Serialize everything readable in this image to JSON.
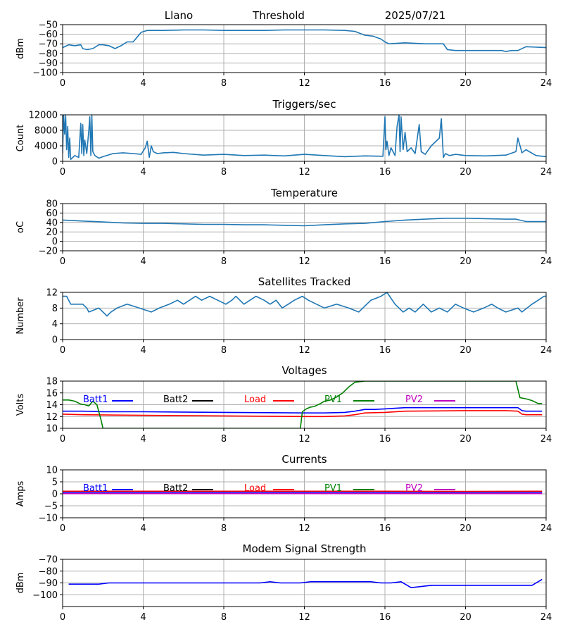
{
  "header": {
    "station": "Llano",
    "subtitle": "Threshold",
    "date": "2025/07/21"
  },
  "colors": {
    "series_default": "#1f77b4",
    "batt1": "#0000ff",
    "batt2": "#000000",
    "load": "#ff0000",
    "pv1": "#008000",
    "pv2": "#bf00bf",
    "grid": "#b0b0b0"
  },
  "chart_data": [
    {
      "type": "line",
      "title": "",
      "ylabel": "dBm",
      "ylim": [
        -100,
        -50
      ],
      "yticks": [
        -50,
        -60,
        -70,
        -80,
        -90,
        -100
      ],
      "xlim": [
        0,
        24
      ],
      "xticks": [
        0,
        4,
        8,
        12,
        16,
        20,
        24
      ],
      "grid": true,
      "series": [
        {
          "color": "#1f77b4",
          "x": [
            0,
            0.3,
            0.6,
            0.9,
            1.0,
            1.2,
            1.5,
            1.8,
            2.0,
            2.3,
            2.6,
            2.9,
            3.2,
            3.5,
            3.7,
            3.9,
            4.2,
            5,
            6,
            7,
            8,
            9,
            10,
            11,
            12,
            13,
            14,
            14.5,
            15,
            15.4,
            15.8,
            16.0,
            16.2,
            17,
            18,
            18.9,
            19.1,
            19.5,
            20,
            21,
            21.8,
            22.0,
            22.3,
            22.6,
            23,
            24
          ],
          "y": [
            -74,
            -71,
            -72,
            -71,
            -75,
            -76,
            -75,
            -71,
            -71,
            -72,
            -75,
            -72,
            -68,
            -68,
            -63,
            -58,
            -56,
            -56,
            -55.5,
            -55.5,
            -56,
            -56,
            -56,
            -55.5,
            -55.5,
            -55.5,
            -56,
            -57,
            -61,
            -62,
            -65,
            -68,
            -70,
            -69,
            -70,
            -70,
            -76,
            -77,
            -77,
            -77,
            -77,
            -78,
            -77,
            -77,
            -73,
            -74
          ]
        }
      ]
    },
    {
      "type": "line",
      "title": "Triggers/sec",
      "ylabel": "Count",
      "ylim": [
        0,
        12000
      ],
      "yticks": [
        0,
        4000,
        8000,
        12000
      ],
      "xlim": [
        0,
        24
      ],
      "xticks": [
        0,
        4,
        8,
        12,
        16,
        20,
        24
      ],
      "grid": true,
      "series": [
        {
          "color": "#1f77b4",
          "x": [
            0,
            0.05,
            0.1,
            0.15,
            0.2,
            0.25,
            0.3,
            0.35,
            0.4,
            0.6,
            0.8,
            0.9,
            0.95,
            1.0,
            1.05,
            1.1,
            1.2,
            1.3,
            1.35,
            1.4,
            1.45,
            1.5,
            1.6,
            1.8,
            2.0,
            2.5,
            3.0,
            3.5,
            3.9,
            4.1,
            4.2,
            4.3,
            4.4,
            4.5,
            4.7,
            5.0,
            5.5,
            6.0,
            7.0,
            8.0,
            9.0,
            10.0,
            11.0,
            12.0,
            13.0,
            14.0,
            15.0,
            15.9,
            16.0,
            16.05,
            16.1,
            16.2,
            16.3,
            16.5,
            16.6,
            16.7,
            16.75,
            16.8,
            16.9,
            17.0,
            17.1,
            17.3,
            17.5,
            17.7,
            17.8,
            18.0,
            18.3,
            18.7,
            18.8,
            18.9,
            19.0,
            19.2,
            19.5,
            20.0,
            21.0,
            22.0,
            22.5,
            22.6,
            22.8,
            23.0,
            23.5,
            24.0
          ],
          "y": [
            2000,
            12000,
            7000,
            11800,
            3000,
            9000,
            1000,
            6000,
            500,
            1500,
            1000,
            9800,
            2000,
            9500,
            1500,
            5500,
            2000,
            8000,
            11500,
            1500,
            12000,
            2500,
            1500,
            800,
            1200,
            2000,
            2200,
            2000,
            1800,
            3500,
            5200,
            1000,
            4000,
            2500,
            2000,
            2200,
            2300,
            2000,
            1600,
            1800,
            1500,
            1600,
            1400,
            1800,
            1500,
            1200,
            1400,
            1300,
            11500,
            3000,
            5200,
            1500,
            3500,
            1500,
            9000,
            12000,
            2500,
            11500,
            3000,
            7500,
            2500,
            3500,
            2000,
            9500,
            2500,
            1800,
            4000,
            6000,
            11000,
            1000,
            2000,
            1500,
            1800,
            1500,
            1400,
            1600,
            2500,
            6000,
            2200,
            3000,
            1500,
            1200
          ]
        }
      ]
    },
    {
      "type": "line",
      "title": "Temperature",
      "ylabel": "oC",
      "ylim": [
        -20,
        80
      ],
      "yticks": [
        80,
        60,
        40,
        20,
        0,
        -20
      ],
      "xlim": [
        0,
        24
      ],
      "xticks": [
        0,
        4,
        8,
        12,
        16,
        20,
        24
      ],
      "grid": true,
      "series": [
        {
          "color": "#1f77b4",
          "x": [
            0,
            0.5,
            1,
            2,
            3,
            4,
            5,
            6,
            7,
            8,
            9,
            10,
            11,
            12,
            13,
            14,
            15,
            16,
            17,
            18,
            19,
            20,
            21,
            22,
            22.5,
            23,
            24
          ],
          "y": [
            45,
            44,
            43,
            41,
            39,
            38,
            38,
            37,
            36,
            36,
            35,
            35,
            34,
            33,
            35,
            37,
            38,
            42,
            45,
            47,
            49,
            49,
            48,
            47,
            47,
            42,
            42
          ]
        }
      ]
    },
    {
      "type": "line",
      "title": "Satellites Tracked",
      "ylabel": "Number",
      "ylim": [
        0,
        12
      ],
      "yticks": [
        0,
        4,
        8,
        12
      ],
      "xlim": [
        0,
        24
      ],
      "xticks": [
        0,
        4,
        8,
        12,
        16,
        20,
        24
      ],
      "grid": true,
      "series": [
        {
          "color": "#1f77b4",
          "x": [
            0,
            0.2,
            0.4,
            1.0,
            1.2,
            1.2,
            1.3,
            1.3,
            1.8,
            1.8,
            2.0,
            2.0,
            2.2,
            2.2,
            2.4,
            2.4,
            2.7,
            2.7,
            3.2,
            3.2,
            3.8,
            3.8,
            4.4,
            4.4,
            4.8,
            4.8,
            5.3,
            5.3,
            5.7,
            5.7,
            6.0,
            6.0,
            6.3,
            6.3,
            6.6,
            6.6,
            6.9,
            6.9,
            7.3,
            7.3,
            7.7,
            7.7,
            8.1,
            8.1,
            8.4,
            8.4,
            8.6,
            8.6,
            9.0,
            9.0,
            9.3,
            9.3,
            9.6,
            9.6,
            10.0,
            10.0,
            10.3,
            10.3,
            10.6,
            10.6,
            10.9,
            10.9,
            11.2,
            11.2,
            11.5,
            11.5,
            11.9,
            11.9,
            12.2,
            12.2,
            12.6,
            12.6,
            13.0,
            13.0,
            13.6,
            13.6,
            14.2,
            14.2,
            14.7,
            14.7,
            15.3,
            15.3,
            15.8,
            15.8,
            16.1,
            16.1,
            16.5,
            16.5,
            16.9,
            16.9,
            17.2,
            17.2,
            17.5,
            17.5,
            17.9,
            17.9,
            18.3,
            18.3,
            18.7,
            18.7,
            19.1,
            19.1,
            19.5,
            19.5,
            19.9,
            19.9,
            20.4,
            20.4,
            20.9,
            20.9,
            21.3,
            21.3,
            21.6,
            21.6,
            22.0,
            22.0,
            22.6,
            22.6,
            22.8,
            22.8,
            23.3,
            23.3,
            23.6,
            23.6,
            23.9,
            24.0
          ],
          "y": [
            11,
            11,
            9,
            9,
            8,
            8,
            7,
            7,
            8,
            8,
            7,
            7,
            6,
            6,
            7,
            7,
            8,
            8,
            9,
            9,
            8,
            8,
            7,
            7,
            8,
            8,
            9,
            9,
            10,
            10,
            9,
            9,
            10,
            10,
            11,
            11,
            10,
            10,
            11,
            11,
            10,
            10,
            9,
            9,
            10,
            10,
            11,
            11,
            9,
            9,
            10,
            10,
            11,
            11,
            10,
            10,
            9,
            9,
            10,
            10,
            8,
            8,
            9,
            9,
            10,
            10,
            11,
            11,
            10,
            10,
            9,
            9,
            8,
            8,
            9,
            9,
            8,
            8,
            7,
            7,
            10,
            10,
            11,
            11,
            12,
            12,
            9,
            9,
            7,
            7,
            8,
            8,
            7,
            7,
            9,
            9,
            7,
            7,
            8,
            8,
            7,
            7,
            9,
            9,
            8,
            8,
            7,
            7,
            8,
            8,
            9,
            9,
            8,
            8,
            7,
            7,
            8,
            8,
            7,
            7,
            9,
            9,
            10,
            10,
            11,
            11
          ]
        }
      ]
    },
    {
      "type": "line",
      "title": "Voltages",
      "ylabel": "Volts",
      "ylim": [
        10,
        18
      ],
      "yticks": [
        10,
        12,
        14,
        16,
        18
      ],
      "xlim": [
        0,
        24
      ],
      "xticks": [
        0,
        4,
        8,
        12,
        16,
        20,
        24
      ],
      "grid": true,
      "legend": "top",
      "series": [
        {
          "name": "Batt1",
          "color": "#0000ff",
          "x": [
            0,
            1,
            2,
            4,
            8,
            12,
            13,
            14,
            14.5,
            15,
            15.5,
            16,
            17,
            20,
            22.6,
            22.8,
            23,
            23.8
          ],
          "y": [
            12.9,
            12.9,
            12.8,
            12.8,
            12.7,
            12.6,
            12.6,
            12.7,
            12.9,
            13.2,
            13.2,
            13.3,
            13.5,
            13.5,
            13.5,
            13.0,
            12.9,
            12.9
          ]
        },
        {
          "name": "Batt2",
          "color": "#000000",
          "x": [],
          "y": []
        },
        {
          "name": "Load",
          "color": "#ff0000",
          "x": [
            0,
            1,
            4,
            8,
            12,
            13,
            14,
            14.5,
            15,
            16,
            17,
            20,
            22,
            22.6,
            22.8,
            23,
            23.8
          ],
          "y": [
            12.4,
            12.3,
            12.2,
            12.1,
            12.0,
            12.0,
            12.1,
            12.3,
            12.6,
            12.7,
            12.9,
            13.0,
            13.0,
            12.9,
            12.4,
            12.3,
            12.3
          ]
        },
        {
          "name": "PV1",
          "color": "#008000",
          "x": [
            0,
            0.3,
            0.6,
            0.9,
            1.1,
            1.3,
            1.5,
            1.7,
            1.9,
            2.0,
            11.8,
            11.9,
            12.1,
            12.3,
            12.5,
            12.8,
            13.0,
            13.3,
            13.6,
            13.9,
            14.2,
            14.5,
            15.0,
            22.5,
            22.7,
            23.0,
            23.3,
            23.6,
            23.8
          ],
          "y": [
            14.8,
            14.8,
            14.6,
            14.1,
            14.0,
            13.8,
            14.6,
            14.0,
            11.5,
            10.0,
            10.0,
            12.8,
            13.3,
            13.6,
            13.7,
            14.2,
            14.6,
            14.8,
            15.3,
            16.0,
            17.0,
            17.8,
            18.0,
            18.0,
            15.2,
            15.0,
            14.7,
            14.2,
            14.2
          ]
        },
        {
          "name": "PV2",
          "color": "#bf00bf",
          "x": [],
          "y": []
        }
      ]
    },
    {
      "type": "line",
      "title": "Currents",
      "ylabel": "Amps",
      "ylim": [
        -10,
        10
      ],
      "yticks": [
        10,
        5,
        0,
        -5,
        -10
      ],
      "xlim": [
        0,
        24
      ],
      "xticks": [
        0,
        4,
        8,
        12,
        16,
        20,
        24
      ],
      "grid": true,
      "legend": "top",
      "series": [
        {
          "name": "Batt1",
          "color": "#0000ff",
          "x": [
            0,
            23.8
          ],
          "y": [
            0.6,
            0.6
          ]
        },
        {
          "name": "Batt2",
          "color": "#000000",
          "x": [],
          "y": []
        },
        {
          "name": "Load",
          "color": "#ff0000",
          "x": [
            0,
            4,
            8,
            12,
            16,
            20,
            23.8
          ],
          "y": [
            1.1,
            1.1,
            1.1,
            1.1,
            1.1,
            1.0,
            1.1
          ]
        },
        {
          "name": "PV1",
          "color": "#008000",
          "x": [],
          "y": []
        },
        {
          "name": "PV2",
          "color": "#bf00bf",
          "x": [
            0,
            23.8
          ],
          "y": [
            0.1,
            0.1
          ]
        }
      ]
    },
    {
      "type": "line",
      "title": "Modem Signal Strength",
      "ylabel": "dBm",
      "ylim": [
        -110,
        -70
      ],
      "yticks": [
        -70,
        -80,
        -90,
        -100
      ],
      "xlim": [
        0,
        24
      ],
      "xticks": [
        0,
        4,
        8,
        12,
        16,
        20,
        24
      ],
      "grid": true,
      "series": [
        {
          "color": "#0000ff",
          "x": [
            0.3,
            1.8,
            2.3,
            9.8,
            10.3,
            10.8,
            11.8,
            12.3,
            15.3,
            15.8,
            16.3,
            16.8,
            17.3,
            18.3,
            23.3,
            23.8
          ],
          "y": [
            -91,
            -91,
            -90,
            -90,
            -89,
            -90,
            -90,
            -89,
            -89,
            -90,
            -90,
            -89,
            -94,
            -92,
            -92,
            -87
          ]
        }
      ]
    }
  ]
}
